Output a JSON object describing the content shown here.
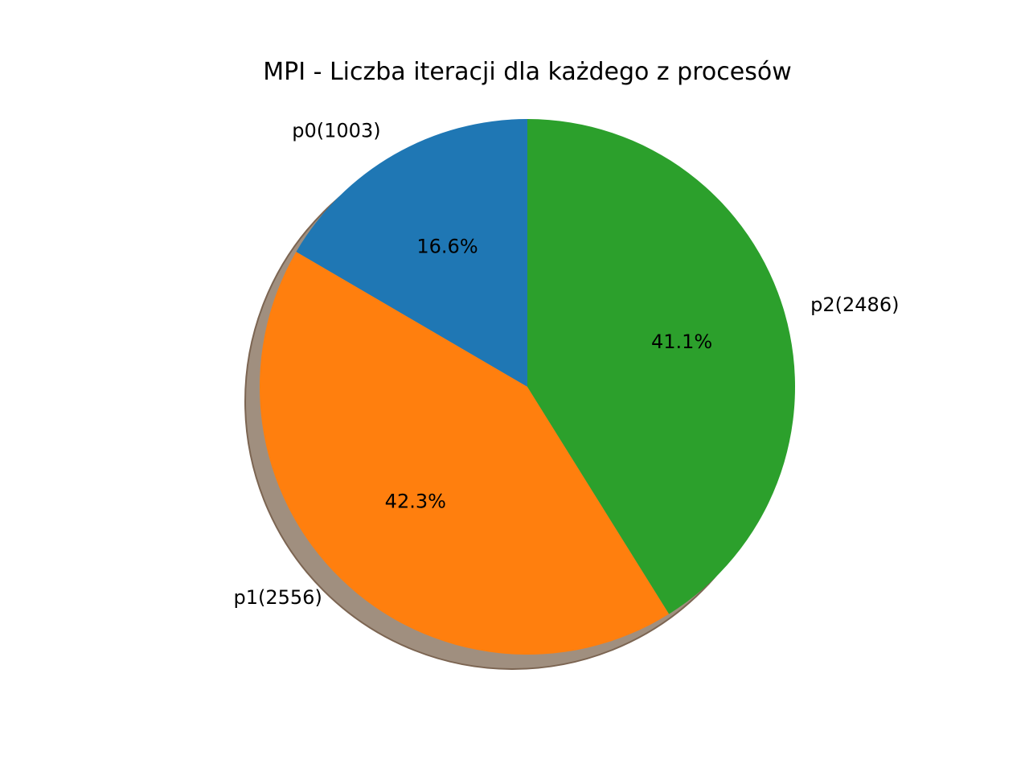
{
  "chart_data": {
    "type": "pie",
    "title": "MPI - Liczba iteracji dla każdego z procesów",
    "categories": [
      "p0",
      "p1",
      "p2"
    ],
    "values": [
      1003,
      2556,
      2486
    ],
    "labels": [
      "p0(1003)",
      "p1(2556)",
      "p2(2486)"
    ],
    "percent_labels": [
      "16.6%",
      "42.3%",
      "41.1%"
    ],
    "colors": [
      "#1f77b4",
      "#ff7f0e",
      "#2ca02c"
    ],
    "start_angle_deg": 90,
    "direction": "counterclockwise",
    "shadow": true,
    "legend": "none"
  }
}
